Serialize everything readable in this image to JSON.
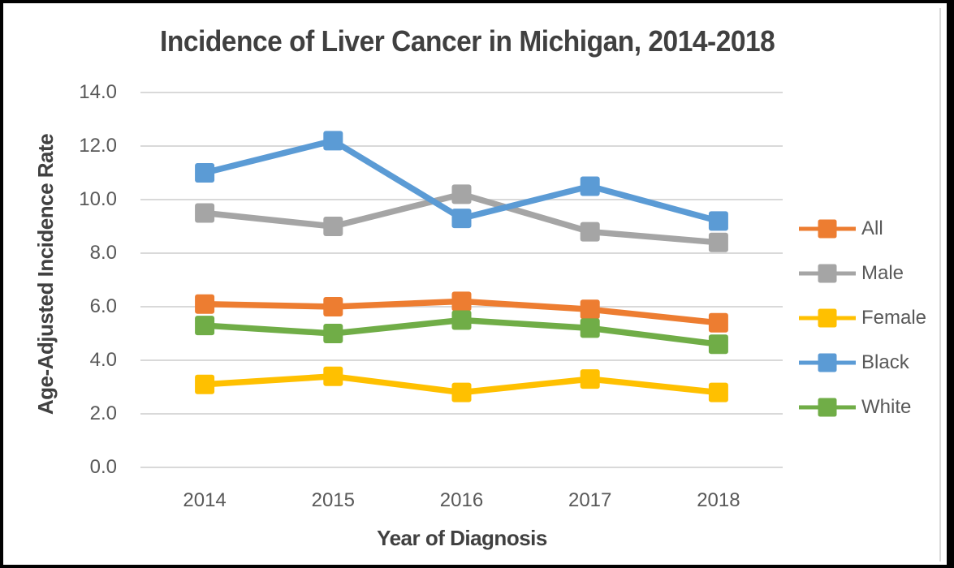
{
  "chart_data": {
    "type": "line",
    "title": "Incidence of Liver Cancer in Michigan, 2014-2018",
    "xlabel": "Year of Diagnosis",
    "ylabel": "Age-Adjusted Incidence Rate",
    "categories": [
      "2014",
      "2015",
      "2016",
      "2017",
      "2018"
    ],
    "series": [
      {
        "name": "All",
        "color": "#ED7D31",
        "values": [
          6.1,
          6.0,
          6.2,
          5.9,
          5.4
        ]
      },
      {
        "name": "Male",
        "color": "#A5A5A5",
        "values": [
          9.5,
          9.0,
          10.2,
          8.8,
          8.4
        ]
      },
      {
        "name": "Female",
        "color": "#FFC000",
        "values": [
          3.1,
          3.4,
          2.8,
          3.3,
          2.8
        ]
      },
      {
        "name": "Black",
        "color": "#5B9BD5",
        "values": [
          11.0,
          12.2,
          9.3,
          10.5,
          9.2
        ]
      },
      {
        "name": "White",
        "color": "#70AD47",
        "values": [
          5.3,
          5.0,
          5.5,
          5.2,
          4.6
        ]
      }
    ],
    "ylim": [
      0,
      14
    ],
    "ytick_labels": [
      "0.0",
      "2.0",
      "4.0",
      "6.0",
      "8.0",
      "10.0",
      "12.0",
      "14.0"
    ],
    "grid": "horizontal",
    "gridline_color": "#D9D9D9",
    "legend_position": "right",
    "legend_order": [
      "All",
      "Male",
      "Female",
      "Black",
      "White"
    ],
    "colors": {
      "title_text": "#404040",
      "axis_text": "#595959",
      "frame_border": "#010101",
      "background": "#FFFFFF"
    }
  }
}
